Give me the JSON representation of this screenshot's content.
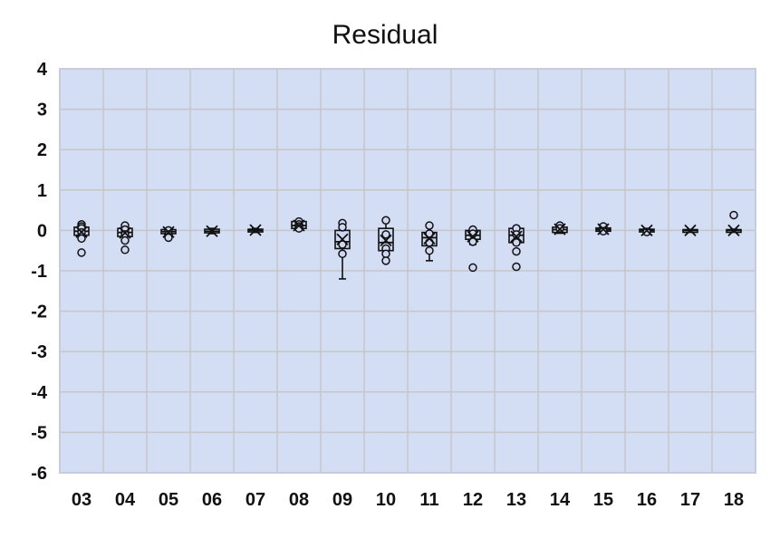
{
  "chart_data": {
    "type": "box",
    "title": "Residual",
    "xlabel": "",
    "ylabel": "",
    "ylim": [
      -6,
      4
    ],
    "yticks": [
      "4",
      "3",
      "2",
      "1",
      "0",
      "-1",
      "-2",
      "-3",
      "-4",
      "-5",
      "-6"
    ],
    "yticks_values": [
      4,
      3,
      2,
      1,
      0,
      -1,
      -2,
      -3,
      -4,
      -5,
      -6
    ],
    "grid": true,
    "colors": {
      "plot_bg": "#d3ddf3",
      "grid": "#c6c6c6",
      "frame": "#c7cbe0",
      "box_fill": "#cfd8f0",
      "stroke": "#111111"
    },
    "categories": [
      "03",
      "04",
      "05",
      "06",
      "07",
      "08",
      "09",
      "10",
      "11",
      "12",
      "13",
      "14",
      "15",
      "16",
      "17",
      "18"
    ],
    "boxes": [
      {
        "q1": -0.12,
        "median": -0.02,
        "q3": 0.08,
        "whisker_low": -0.2,
        "whisker_high": 0.15,
        "mean": -0.04,
        "points": [
          0.15,
          0.1,
          0.05,
          -0.05,
          -0.2,
          -0.55
        ]
      },
      {
        "q1": -0.15,
        "median": -0.05,
        "q3": 0.05,
        "whisker_low": -0.25,
        "whisker_high": 0.12,
        "mean": -0.06,
        "points": [
          0.12,
          0.02,
          -0.1,
          -0.25,
          -0.48
        ]
      },
      {
        "q1": -0.08,
        "median": -0.03,
        "q3": 0.02,
        "whisker_low": -0.15,
        "whisker_high": 0.04,
        "mean": -0.04,
        "points": [
          0.0,
          -0.1,
          -0.18
        ]
      },
      {
        "q1": -0.06,
        "median": -0.02,
        "q3": 0.03,
        "whisker_low": -0.08,
        "whisker_high": 0.05,
        "mean": -0.02,
        "points": []
      },
      {
        "q1": -0.03,
        "median": 0.0,
        "q3": 0.03,
        "whisker_low": -0.05,
        "whisker_high": 0.05,
        "mean": 0.01,
        "points": []
      },
      {
        "q1": 0.05,
        "median": 0.12,
        "q3": 0.22,
        "whisker_low": 0.03,
        "whisker_high": 0.25,
        "mean": 0.12,
        "points": [
          0.22,
          0.15,
          0.1,
          0.05
        ]
      },
      {
        "q1": -0.45,
        "median": -0.28,
        "q3": 0.0,
        "whisker_low": -1.2,
        "whisker_high": 0.2,
        "mean": -0.22,
        "points": [
          0.18,
          0.08,
          -0.35,
          -0.58
        ]
      },
      {
        "q1": -0.5,
        "median": -0.3,
        "q3": 0.05,
        "whisker_low": -0.75,
        "whisker_high": 0.25,
        "mean": -0.25,
        "points": [
          0.25,
          -0.1,
          -0.45,
          -0.58,
          -0.75
        ]
      },
      {
        "q1": -0.38,
        "median": -0.18,
        "q3": -0.05,
        "whisker_low": -0.75,
        "whisker_high": 0.12,
        "mean": -0.2,
        "points": [
          0.12,
          -0.08,
          -0.3,
          -0.5
        ]
      },
      {
        "q1": -0.22,
        "median": -0.12,
        "q3": 0.0,
        "whisker_low": -0.35,
        "whisker_high": 0.05,
        "mean": -0.15,
        "points": [
          0.02,
          -0.08,
          -0.28,
          -0.92
        ]
      },
      {
        "q1": -0.3,
        "median": -0.12,
        "q3": 0.05,
        "whisker_low": -0.35,
        "whisker_high": 0.1,
        "mean": -0.15,
        "points": [
          0.05,
          -0.1,
          -0.3,
          -0.52,
          -0.9
        ]
      },
      {
        "q1": -0.05,
        "median": 0.02,
        "q3": 0.08,
        "whisker_low": -0.07,
        "whisker_high": 0.12,
        "mean": 0.03,
        "points": [
          0.12,
          0.05
        ]
      },
      {
        "q1": -0.02,
        "median": 0.02,
        "q3": 0.06,
        "whisker_low": -0.05,
        "whisker_high": 0.08,
        "mean": 0.03,
        "points": [
          0.1,
          -0.02
        ]
      },
      {
        "q1": -0.03,
        "median": 0.0,
        "q3": 0.03,
        "whisker_low": -0.05,
        "whisker_high": 0.05,
        "mean": 0.0,
        "points": [
          -0.04
        ]
      },
      {
        "q1": -0.02,
        "median": 0.0,
        "q3": 0.02,
        "whisker_low": -0.02,
        "whisker_high": 0.02,
        "mean": 0.0,
        "points": []
      },
      {
        "q1": -0.02,
        "median": 0.0,
        "q3": 0.02,
        "whisker_low": -0.03,
        "whisker_high": 0.03,
        "mean": 0.0,
        "points": [
          0.38
        ]
      }
    ]
  }
}
